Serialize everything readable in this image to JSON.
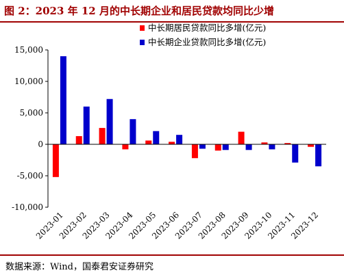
{
  "header": {
    "title": "图 2：2023 年 12 月的中长期企业和居民贷款均同比少增"
  },
  "footer": {
    "source": "数据来源：Wind，国泰君安证券研究"
  },
  "chart_data": {
    "type": "bar",
    "title": "图 2：2023 年 12 月的中长期企业和居民贷款均同比少增",
    "categories": [
      "2023-01",
      "2023-02",
      "2023-03",
      "2023-04",
      "2023-05",
      "2023-06",
      "2023-07",
      "2023-08",
      "2023-09",
      "2023-10",
      "2023-11",
      "2023-12"
    ],
    "series": [
      {
        "name": "中长期居民贷款同比多增(亿元)",
        "color": "#ff0000",
        "values": [
          -5200,
          1300,
          2600,
          -800,
          600,
          400,
          -2200,
          -1000,
          2000,
          300,
          200,
          -400
        ]
      },
      {
        "name": "中长期企业贷款同比多增(亿元)",
        "color": "#0000cc",
        "values": [
          14000,
          6000,
          7200,
          4000,
          2100,
          1500,
          -700,
          -900,
          -900,
          -800,
          -2900,
          -3500
        ]
      }
    ],
    "yticks": [
      15000,
      10000,
      5000,
      0,
      -5000,
      -10000
    ],
    "ytick_labels": [
      "15,000",
      "10,000",
      "5,000",
      "0",
      "-5,000",
      "-10,000"
    ],
    "ylim": [
      -10000,
      15000
    ],
    "xlabel": "",
    "ylabel": "",
    "legend": "top-right",
    "grid": false
  }
}
